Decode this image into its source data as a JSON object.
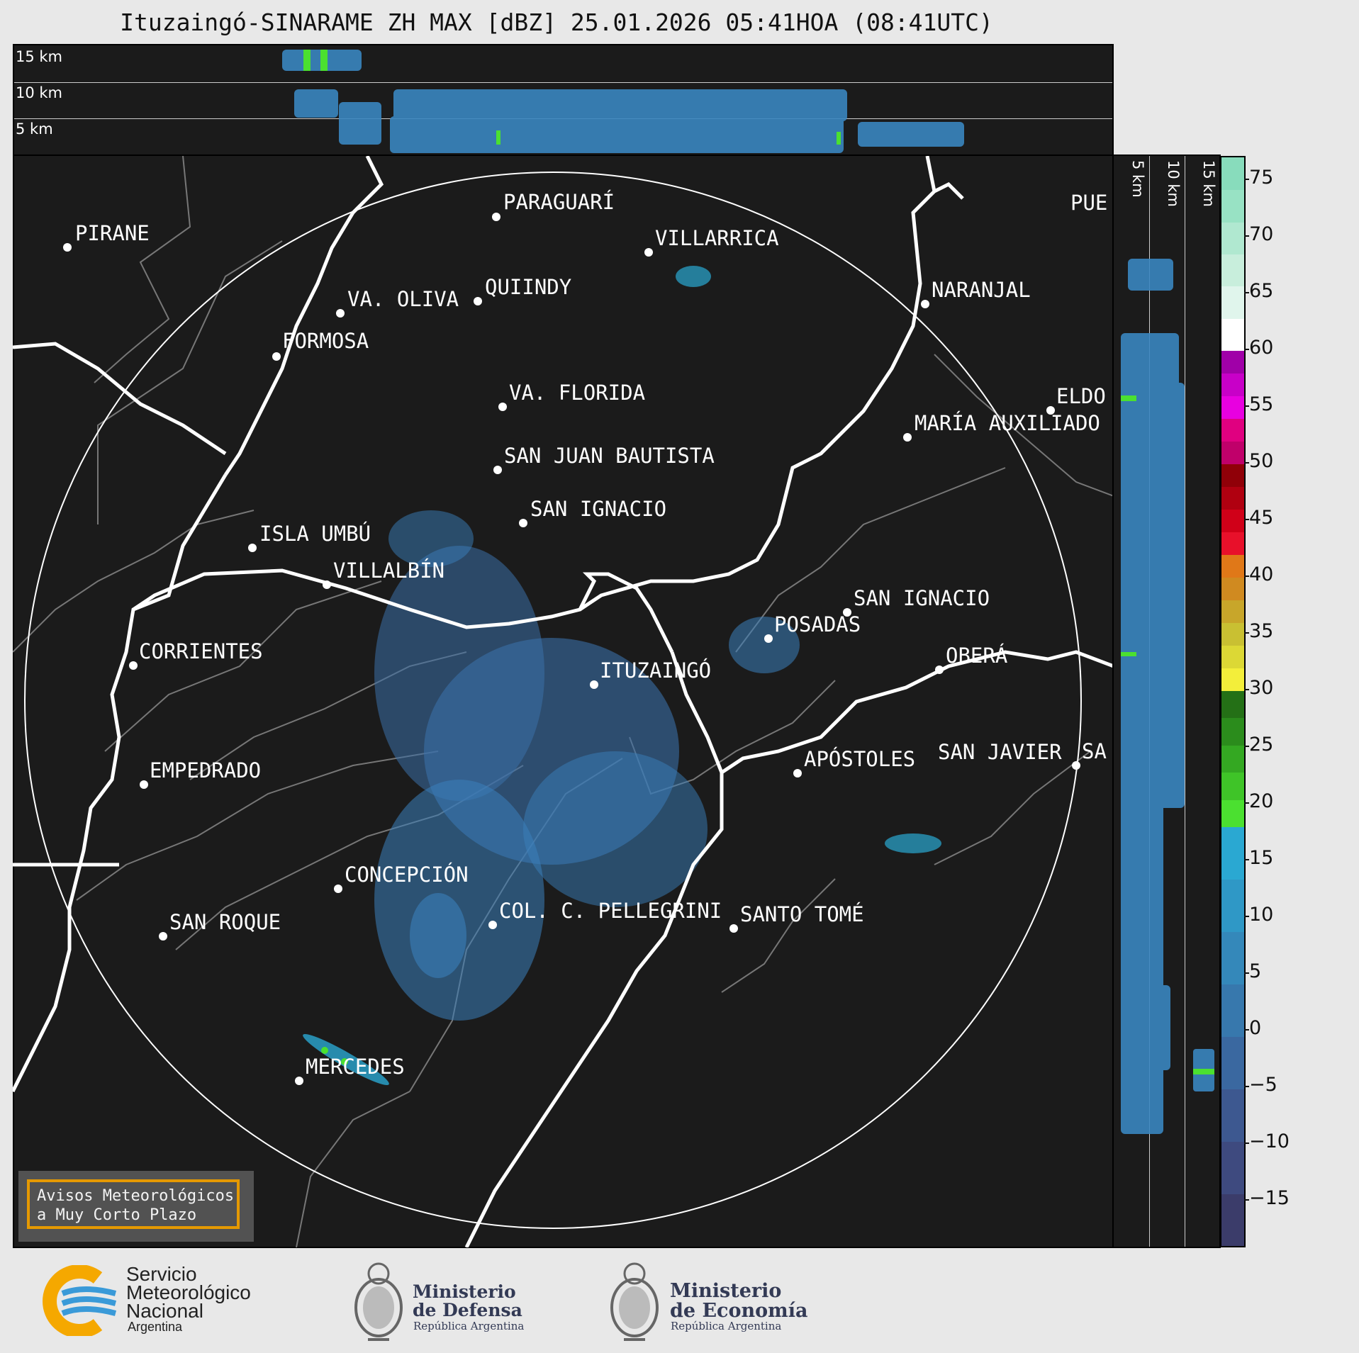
{
  "title": "Ituzaingó-SINARAME ZH MAX [dBZ] 25.01.2026 05:41HOA (08:41UTC)",
  "top_panel": {
    "altitudes": [
      "15 km",
      "10 km",
      "5 km"
    ]
  },
  "side_panel": {
    "altitudes": [
      "5 km",
      "10 km",
      "15 km"
    ]
  },
  "colorbar": {
    "ticks": [
      "75",
      "70",
      "65",
      "60",
      "55",
      "50",
      "45",
      "40",
      "35",
      "30",
      "25",
      "20",
      "15",
      "10",
      "5",
      "0",
      "−5",
      "−10",
      "−15"
    ],
    "range": [
      -19,
      77
    ],
    "bands": [
      {
        "from": -19,
        "to": 18,
        "colors": [
          "#3b3c6a",
          "#3e4a7f",
          "#3d5890",
          "#3a68a0",
          "#3778ad",
          "#3488ba",
          "#2f98c6",
          "#2aa8d2"
        ]
      },
      {
        "from": 18,
        "to": 30,
        "colors": [
          "#4be030",
          "#3fc428",
          "#34a822",
          "#2b8c1c",
          "#247016"
        ]
      },
      {
        "from": 30,
        "to": 42,
        "colors": [
          "#f3ee3a",
          "#dcd835",
          "#c9c032",
          "#c8a62a",
          "#d08a20",
          "#e07818"
        ]
      },
      {
        "from": 42,
        "to": 54,
        "colors": [
          "#e8102a",
          "#d00018",
          "#b00010",
          "#900008",
          "#c0006a",
          "#e00080"
        ]
      },
      {
        "from": 54,
        "to": 60,
        "colors": [
          "#e800e0",
          "#c800c8",
          "#a000a8"
        ]
      },
      {
        "from": 60,
        "to": 77,
        "colors": [
          "#ffffff",
          "#e0f5ec",
          "#c8eedc",
          "#b0e8d0",
          "#98e2c4",
          "#88dcbc"
        ]
      }
    ]
  },
  "cities": [
    {
      "name": "PIRANE"
    },
    {
      "name": "PARAGUARÍ"
    },
    {
      "name": "VILLARRICA"
    },
    {
      "name": "QUIINDY"
    },
    {
      "name": "VA. OLIVA"
    },
    {
      "name": "NARANJAL"
    },
    {
      "name": "FORMOSA"
    },
    {
      "name": "PUE"
    },
    {
      "name": "VA. FLORIDA"
    },
    {
      "name": "ELDO"
    },
    {
      "name": "MARÍA AUXILIADO"
    },
    {
      "name": "SAN JUAN BAUTISTA"
    },
    {
      "name": "SAN IGNACIO"
    },
    {
      "name": "ISLA UMBÚ"
    },
    {
      "name": "VILLALBÍN"
    },
    {
      "name": "SAN IGNACIO"
    },
    {
      "name": "POSADAS"
    },
    {
      "name": "CORRIENTES"
    },
    {
      "name": "ITUZAINGÓ"
    },
    {
      "name": "OBERÁ"
    },
    {
      "name": "APÓSTOLES"
    },
    {
      "name": "SAN JAVIER"
    },
    {
      "name": "SA"
    },
    {
      "name": "EMPEDRADO"
    },
    {
      "name": "CONCEPCIÓN"
    },
    {
      "name": "COL. C. PELLEGRINI"
    },
    {
      "name": "SANTO TOMÉ"
    },
    {
      "name": "SAN ROQUE"
    },
    {
      "name": "MERCEDES"
    }
  ],
  "notice": {
    "line1": "Avisos Meteorológicos",
    "line2": "a Muy Corto Plazo"
  },
  "logos": {
    "smn": {
      "line1": "Servicio",
      "line2": "Meteorológico",
      "line3": "Nacional",
      "line4": "Argentina"
    },
    "defensa": {
      "line1": "Ministerio",
      "line2": "de Defensa",
      "line3": "República Argentina"
    },
    "economia": {
      "line1": "Ministerio",
      "line2": "de Economía",
      "line3": "República Argentina"
    }
  },
  "colors": {
    "panel_bg": "#1b1b1b",
    "page_bg": "#e8e8e8",
    "echo": "#3a86c0",
    "accent_orange": "#f0a000"
  }
}
